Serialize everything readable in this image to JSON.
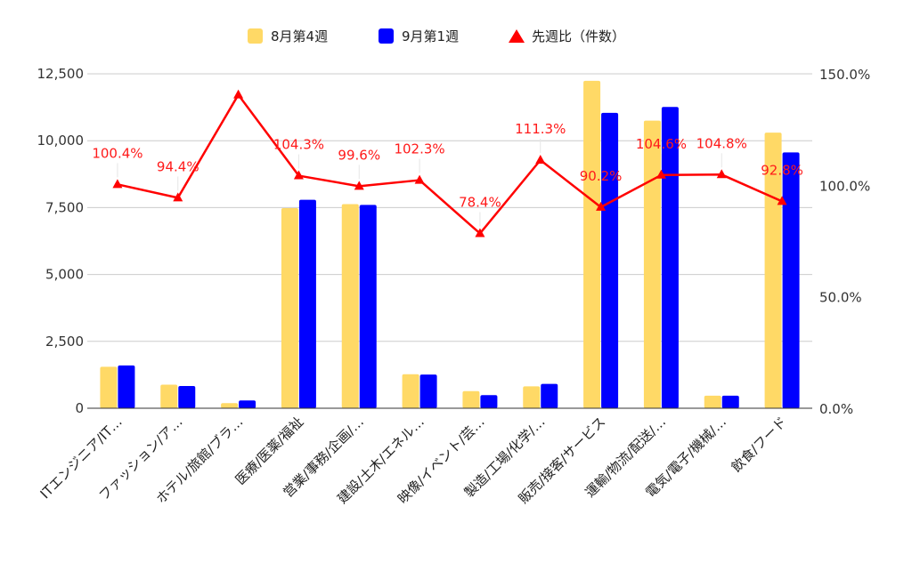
{
  "chart_data": {
    "type": "bar",
    "title": "",
    "categories": [
      "ITエンジニア/IT…",
      "ファッション/ア…",
      "ホテル/旅館/ブラ…",
      "医療/医薬/福祉",
      "営業/事務/企画/…",
      "建設/土木/エネル…",
      "映像/イベント/芸…",
      "製造/工場/化学/…",
      "販売/接客/サービス",
      "運輸/物流/配送/…",
      "電気/電子/機械/…",
      "飲食/フード"
    ],
    "series": [
      {
        "name": "8月第4週",
        "type": "bar",
        "axis": "left",
        "color": "#ffd966",
        "values": [
          1550,
          880,
          190,
          7480,
          7630,
          1270,
          640,
          820,
          12240,
          10750,
          470,
          10300
        ]
      },
      {
        "name": "9月第1週",
        "type": "bar",
        "axis": "left",
        "color": "#0000ff",
        "values": [
          1600,
          830,
          290,
          7790,
          7600,
          1260,
          490,
          910,
          11040,
          11260,
          470,
          9560
        ]
      },
      {
        "name": "先週比（件数）",
        "type": "line",
        "axis": "right",
        "color": "#ff0000",
        "marker": "triangle",
        "values": [
          100.4,
          94.4,
          140.6,
          104.3,
          99.6,
          102.3,
          78.4,
          111.3,
          90.2,
          104.6,
          104.8,
          92.8
        ],
        "labels": [
          "100.4%",
          "94.4%",
          "",
          "104.3%",
          "99.6%",
          "102.3%",
          "78.4%",
          "111.3%",
          "90.2%",
          "104.6%",
          "104.8%",
          "92.8%"
        ]
      }
    ],
    "y_left": {
      "ylim": [
        0,
        12500
      ],
      "ticks": [
        0,
        2500,
        5000,
        7500,
        10000,
        12500
      ],
      "tick_labels": [
        "0",
        "2,500",
        "5,000",
        "7,500",
        "10,000",
        "12,500"
      ]
    },
    "y_right": {
      "ylim": [
        0,
        150
      ],
      "ticks": [
        0,
        50,
        100,
        150
      ],
      "tick_labels": [
        "0.0%",
        "50.0%",
        "100.0%",
        "150.0%"
      ]
    },
    "grid": true,
    "legend_position": "top"
  }
}
